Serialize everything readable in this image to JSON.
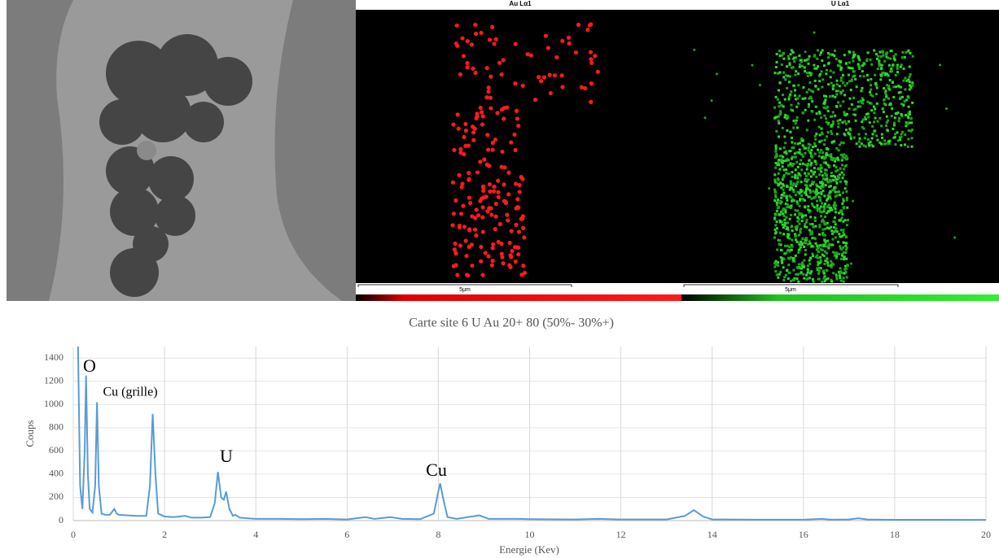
{
  "chart_data": {
    "type": "line",
    "title": "Carte site 6 U Au 20+ 80 (50%- 30%+)",
    "x_label": "Energie (Kev)",
    "y_label": "Coups",
    "annotations": [
      "O",
      "Cu (grille)",
      "U",
      "Cu"
    ],
    "x": [
      0.1,
      0.15,
      0.2,
      0.25,
      0.28,
      0.32,
      0.36,
      0.42,
      0.48,
      0.52,
      0.56,
      0.62,
      0.7,
      0.8,
      0.9,
      0.95,
      1.0,
      1.2,
      1.4,
      1.6,
      1.68,
      1.74,
      1.8,
      1.86,
      2.0,
      2.2,
      2.45,
      2.6,
      2.8,
      3.0,
      3.1,
      3.17,
      3.24,
      3.3,
      3.35,
      3.42,
      3.5,
      3.55,
      3.65,
      3.8,
      4.0,
      4.5,
      5,
      5.5,
      6,
      6.4,
      6.6,
      6.95,
      7.2,
      7.6,
      7.9,
      8.0,
      8.04,
      8.1,
      8.2,
      8.4,
      8.9,
      9.1,
      9.7,
      10,
      11,
      11.5,
      12,
      13,
      13.4,
      13.6,
      13.8,
      14,
      15,
      16,
      16.4,
      16.6,
      17,
      17.2,
      17.4,
      18,
      19,
      20
    ],
    "series": [
      {
        "name": "Coups",
        "color": "#5b9bd5",
        "values": [
          1600,
          300,
          100,
          600,
          1250,
          400,
          100,
          70,
          300,
          1020,
          300,
          60,
          50,
          50,
          100,
          60,
          50,
          45,
          40,
          40,
          300,
          920,
          400,
          60,
          35,
          30,
          40,
          25,
          25,
          30,
          150,
          420,
          200,
          180,
          250,
          100,
          40,
          50,
          25,
          20,
          15,
          15,
          12,
          15,
          10,
          30,
          15,
          30,
          15,
          12,
          60,
          250,
          320,
          200,
          30,
          15,
          45,
          15,
          15,
          12,
          10,
          15,
          10,
          10,
          40,
          90,
          35,
          10,
          8,
          8,
          15,
          8,
          10,
          20,
          10,
          7,
          7,
          6
        ]
      }
    ],
    "xlim": [
      0,
      20
    ],
    "xticks": [
      0,
      2,
      4,
      6,
      8,
      10,
      12,
      14,
      16,
      18,
      20
    ],
    "ylim": [
      0,
      1500
    ],
    "yticks": [
      0,
      200,
      400,
      600,
      800,
      1000,
      1200,
      1400
    ],
    "grid": true
  },
  "maps": [
    {
      "label": "Au Lα1",
      "scale": "5μm"
    },
    {
      "label": "U Lα1",
      "scale": "5μm"
    }
  ]
}
